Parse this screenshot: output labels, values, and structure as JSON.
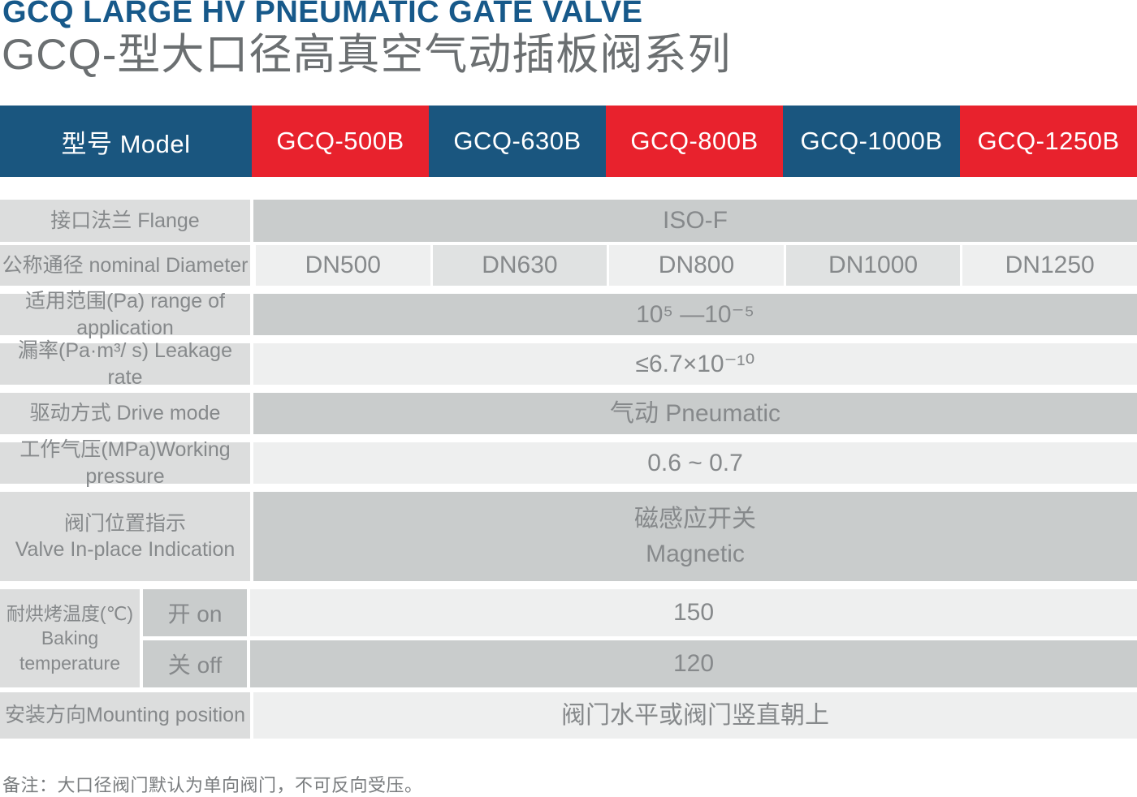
{
  "page": {
    "title_en": "GCQ LARGE HV PNEUMATIC GATE VALVE",
    "title_zh": "GCQ-型大口径高真空气动插板阀系列",
    "note": "备注：大口径阀门默认为单向阀门，不可反向受压。"
  },
  "colors": {
    "brand_blue": "#1a567f",
    "brand_red": "#e8222d",
    "label_bg": "#dcdddd",
    "value_dark_bg": "#c9cccc",
    "value_light_bg": "#eeefef",
    "value_alt_bg": "#e0e2e2",
    "text_gray": "#86898b"
  },
  "table": {
    "header": {
      "model_label": "型号 Model",
      "models": [
        {
          "label": "GCQ-500B",
          "color": "red"
        },
        {
          "label": "GCQ-630B",
          "color": "blue"
        },
        {
          "label": "GCQ-800B",
          "color": "red"
        },
        {
          "label": "GCQ-1000B",
          "color": "blue"
        },
        {
          "label": "GCQ-1250B",
          "color": "red"
        }
      ]
    },
    "rows": {
      "flange": {
        "label": "接口法兰 Flange",
        "value": "ISO-F"
      },
      "diameter": {
        "label": "公称通径 nominal Diameter",
        "values": [
          "DN500",
          "DN630",
          "DN800",
          "DN1000",
          "DN1250"
        ]
      },
      "range": {
        "label": "适用范围(Pa) range of application",
        "value": "10⁵ —10⁻⁵"
      },
      "leakage": {
        "label": "漏率(Pa·m³/ s) Leakage rate",
        "value": "≤6.7×10⁻¹⁰"
      },
      "drive": {
        "label": "驱动方式 Drive mode",
        "value": "气动 Pneumatic"
      },
      "pressure": {
        "label": "工作气压(MPa)Working pressure",
        "value": "0.6 ~ 0.7"
      },
      "indication": {
        "label_zh": "阀门位置指示",
        "label_en": "Valve In-place Indication",
        "value_zh": "磁感应开关",
        "value_en": "Magnetic"
      },
      "baking": {
        "label_zh": "耐烘烤温度(℃)",
        "label_en1": "Baking",
        "label_en2": "temperature",
        "sub_on": "开 on",
        "value_on": "150",
        "sub_off": "关 off",
        "value_off": "120"
      },
      "mounting": {
        "label": "安装方向Mounting position",
        "value": "阀门水平或阀门竖直朝上"
      }
    }
  }
}
